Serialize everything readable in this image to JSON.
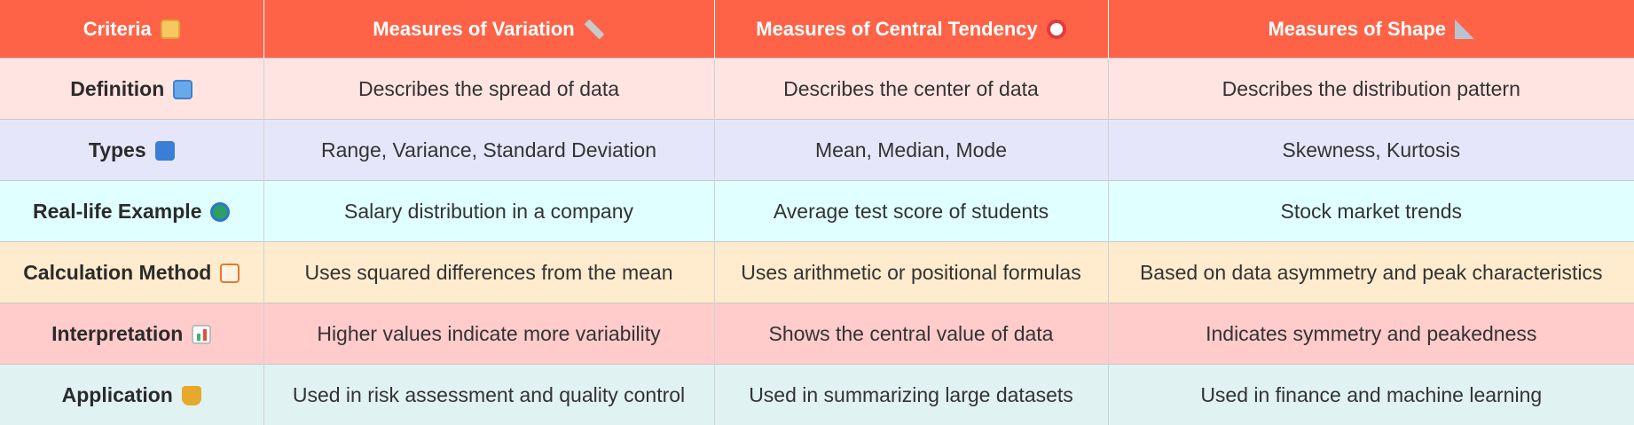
{
  "headers": [
    {
      "label": "Criteria",
      "icon": "scroll-icon"
    },
    {
      "label": "Measures of Variation",
      "icon": "ruler-icon"
    },
    {
      "label": "Measures of Central Tendency",
      "icon": "target-icon"
    },
    {
      "label": "Measures of Shape",
      "icon": "triangle-ruler-icon"
    }
  ],
  "rows": [
    {
      "criteria": "Definition",
      "icon": "book-icon",
      "bg": "#ffe4e1",
      "cells": [
        "Describes the spread of data",
        "Describes the center of data",
        "Describes the distribution pattern"
      ]
    },
    {
      "criteria": "Types",
      "icon": "numbers-icon",
      "bg": "#e6e6fa",
      "cells": [
        "Range, Variance, Standard Deviation",
        "Mean, Median, Mode",
        "Skewness, Kurtosis"
      ]
    },
    {
      "criteria": "Real-life Example",
      "icon": "globe-icon",
      "bg": "#e0ffff",
      "cells": [
        "Salary distribution in a company",
        "Average test score of students",
        "Stock market trends"
      ]
    },
    {
      "criteria": "Calculation Method",
      "icon": "abacus-icon",
      "bg": "#ffebcd",
      "cells": [
        "Uses squared differences from the mean",
        "Uses arithmetic or positional formulas",
        "Based on data asymmetry and peak characteristics"
      ]
    },
    {
      "criteria": "Interpretation",
      "icon": "bar-chart-icon",
      "bg": "#ffcccb",
      "cells": [
        "Higher values indicate more variability",
        "Shows the central value of data",
        "Indicates symmetry and peakedness"
      ]
    },
    {
      "criteria": "Application",
      "icon": "trophy-icon",
      "bg": "#e0f2f1",
      "cells": [
        "Used in risk assessment and quality control",
        "Used in summarizing large datasets",
        "Used in finance and machine learning"
      ]
    }
  ],
  "colors": {
    "header_bg": "#ff6347",
    "header_text": "#ffffff",
    "body_text": "#333333"
  }
}
